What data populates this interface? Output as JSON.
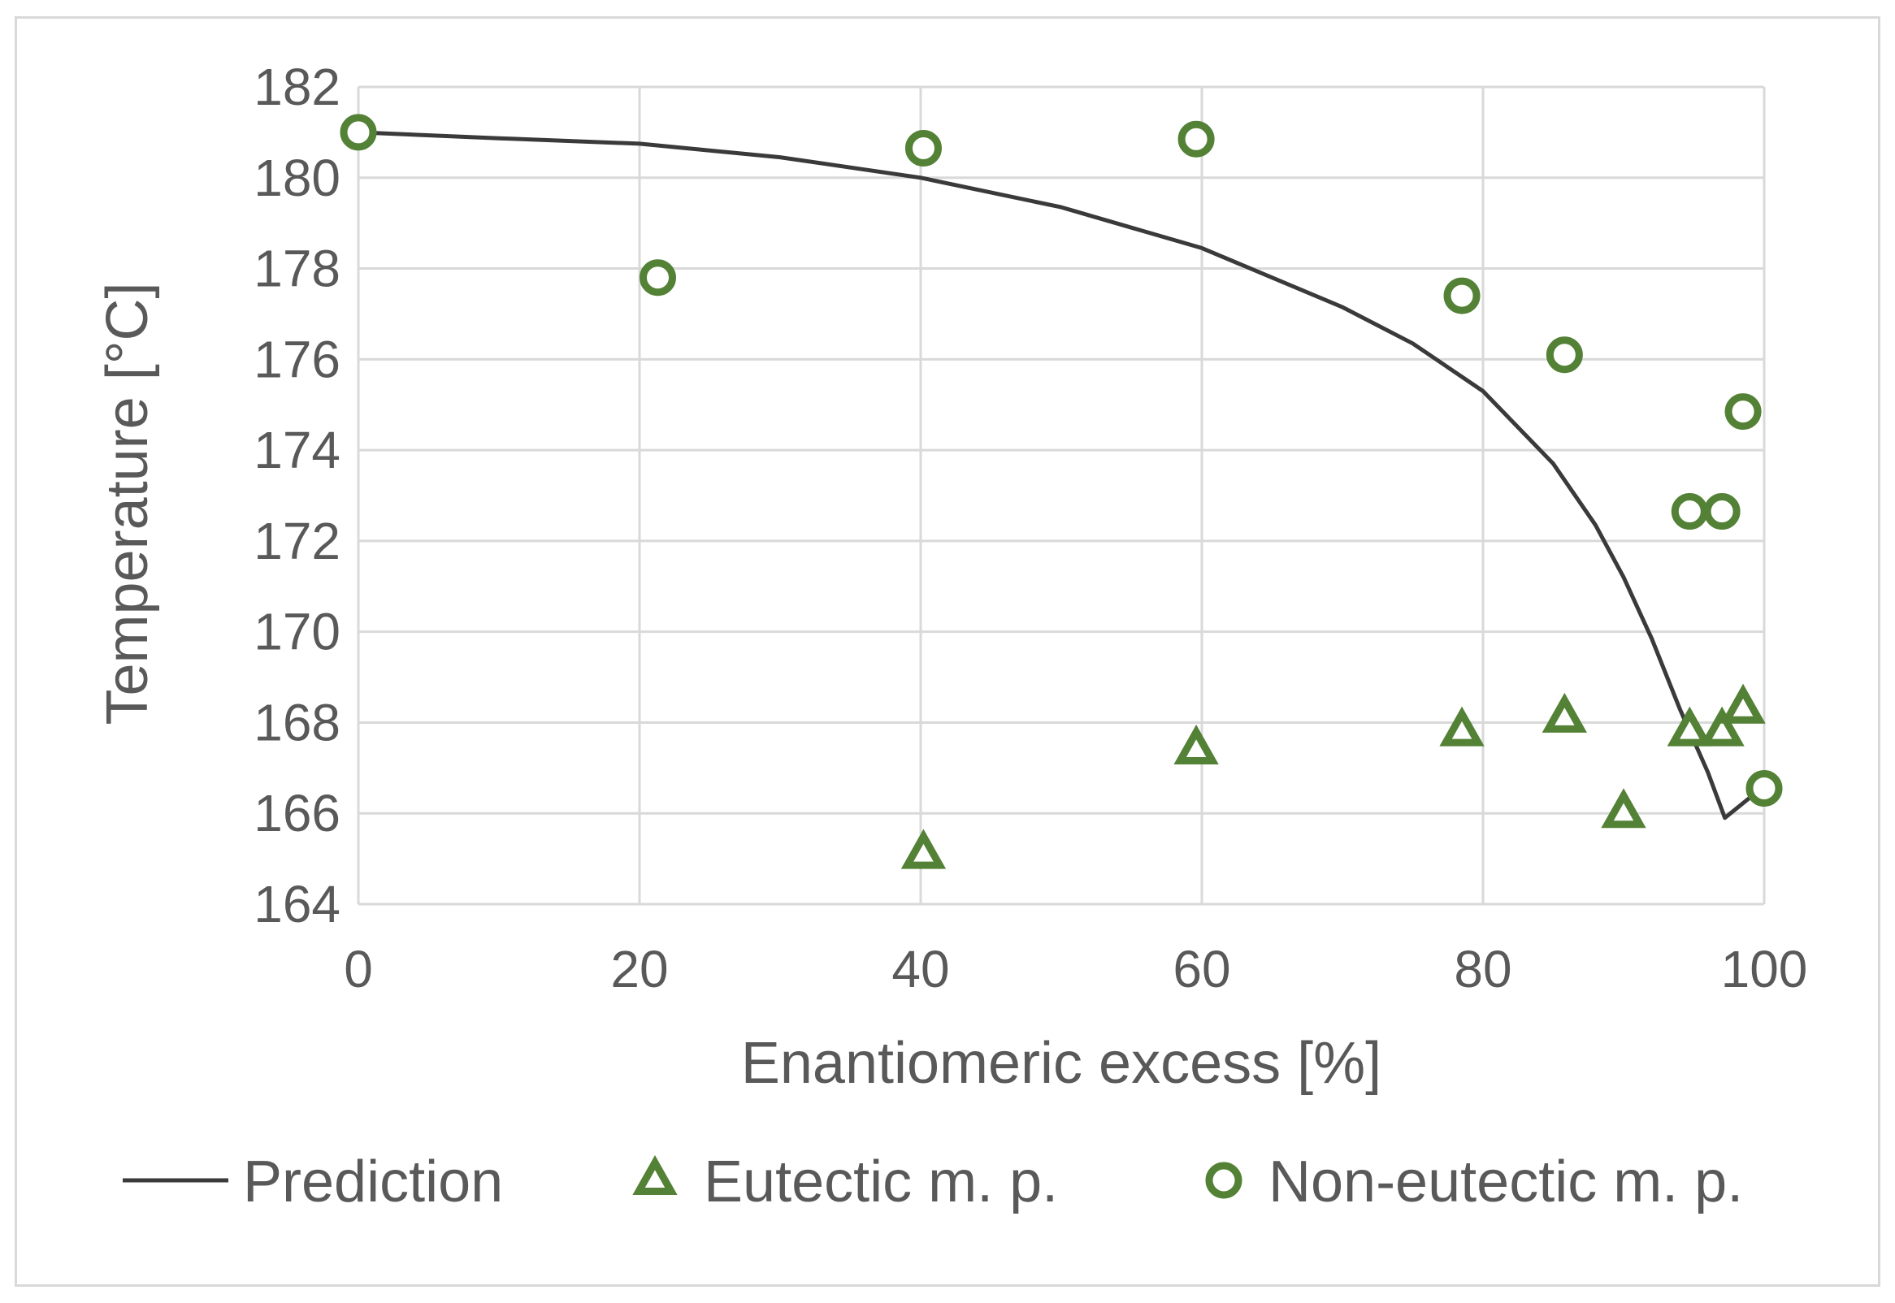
{
  "chart_data": {
    "type": "scatter",
    "title": "",
    "xlabel": "Enantiomeric excess [%]",
    "ylabel": "Temperature [°C]",
    "xlim": [
      0,
      100
    ],
    "ylim": [
      164,
      182
    ],
    "x_ticks": [
      0,
      20,
      40,
      60,
      80,
      100
    ],
    "y_ticks": [
      164,
      166,
      168,
      170,
      172,
      174,
      176,
      178,
      180,
      182
    ],
    "grid": true,
    "legend_position": "bottom",
    "series": [
      {
        "name": "Prediction",
        "kind": "line",
        "color": "#3a3a3a",
        "points": [
          [
            0,
            181.0
          ],
          [
            10,
            180.87
          ],
          [
            20,
            180.75
          ],
          [
            30,
            180.45
          ],
          [
            40,
            180.0
          ],
          [
            50,
            179.35
          ],
          [
            60,
            178.45
          ],
          [
            70,
            177.15
          ],
          [
            75,
            176.35
          ],
          [
            80,
            175.3
          ],
          [
            85,
            173.7
          ],
          [
            88,
            172.35
          ],
          [
            90,
            171.2
          ],
          [
            92,
            169.85
          ],
          [
            94,
            168.3
          ],
          [
            96,
            166.9
          ],
          [
            97.2,
            165.9
          ],
          [
            100,
            166.6
          ]
        ]
      },
      {
        "name": "Eutectic m. p.",
        "kind": "marker-triangle",
        "color": "#538135",
        "points": [
          [
            40.2,
            165.1
          ],
          [
            59.6,
            167.4
          ],
          [
            78.5,
            167.8
          ],
          [
            85.8,
            168.1
          ],
          [
            90.0,
            166.0
          ],
          [
            94.7,
            167.8
          ],
          [
            97.0,
            167.8
          ],
          [
            98.5,
            168.3
          ]
        ]
      },
      {
        "name": "Non-eutectic m. p.",
        "kind": "marker-circle",
        "color": "#538135",
        "points": [
          [
            0,
            181.0
          ],
          [
            21.3,
            177.8
          ],
          [
            40.2,
            180.65
          ],
          [
            59.6,
            180.85
          ],
          [
            78.5,
            177.4
          ],
          [
            85.8,
            176.1
          ],
          [
            94.7,
            172.65
          ],
          [
            97.0,
            172.65
          ],
          [
            98.5,
            174.85
          ],
          [
            100,
            166.55
          ]
        ]
      }
    ]
  }
}
